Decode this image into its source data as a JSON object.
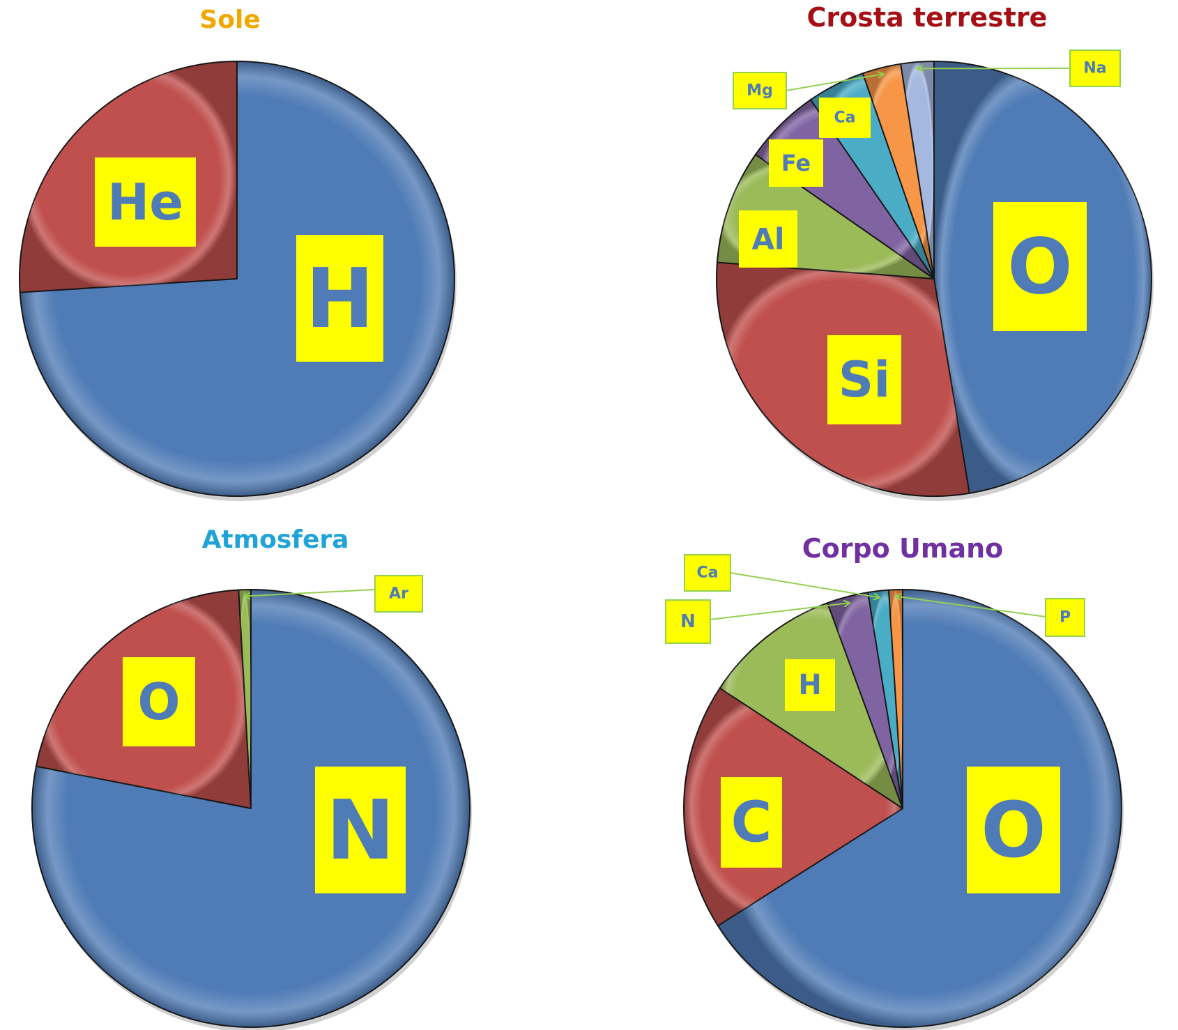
{
  "colors": {
    "blue": "#4f7bb6",
    "red": "#c0504d",
    "green": "#9bbb59",
    "purple": "#8064a2",
    "teal": "#4bacc6",
    "orange": "#f79646",
    "lavender": "#a5b8e0",
    "label_bg": "#ffff00",
    "label_text": "#4f7bb6",
    "leader": "#92d050",
    "slice_edge": "#1a1a1a"
  },
  "chart_data": [
    {
      "type": "pie",
      "title": "Sole",
      "title_color": "#f0a800",
      "start_angle_deg": 0,
      "slices": [
        {
          "label": "H",
          "value": 74,
          "color": "#4f7bb6",
          "label_style": "inside"
        },
        {
          "label": "He",
          "value": 26,
          "color": "#c0504d",
          "label_style": "inside"
        }
      ]
    },
    {
      "type": "pie",
      "title": "Crosta terrestre",
      "title_color": "#a50f15",
      "start_angle_deg": 0,
      "slices": [
        {
          "label": "O",
          "value": 46.4,
          "color": "#4f7bb6",
          "label_style": "inside"
        },
        {
          "label": "Si",
          "value": 28.2,
          "color": "#c0504d",
          "label_style": "inside"
        },
        {
          "label": "Al",
          "value": 8.3,
          "color": "#9bbb59",
          "label_style": "inside"
        },
        {
          "label": "Fe",
          "value": 5.6,
          "color": "#8064a2",
          "label_style": "inside"
        },
        {
          "label": "Ca",
          "value": 4.2,
          "color": "#4bacc6",
          "label_style": "inside"
        },
        {
          "label": "Mg",
          "value": 2.8,
          "color": "#f79646",
          "label_style": "callout"
        },
        {
          "label": "Na",
          "value": 2.4,
          "color": "#a5b8e0",
          "label_style": "callout"
        }
      ]
    },
    {
      "type": "pie",
      "title": "Atmosfera",
      "title_color": "#1fa3d8",
      "start_angle_deg": 0,
      "slices": [
        {
          "label": "N",
          "value": 78,
          "color": "#4f7bb6",
          "label_style": "inside"
        },
        {
          "label": "O",
          "value": 21,
          "color": "#c0504d",
          "label_style": "inside"
        },
        {
          "label": "Ar",
          "value": 0.9,
          "color": "#9bbb59",
          "label_style": "callout"
        }
      ]
    },
    {
      "type": "pie",
      "title": "Corpo Umano",
      "title_color": "#7030a0",
      "start_angle_deg": 0,
      "slices": [
        {
          "label": "O",
          "value": 65,
          "color": "#4f7bb6",
          "label_style": "inside"
        },
        {
          "label": "C",
          "value": 18,
          "color": "#c0504d",
          "label_style": "inside"
        },
        {
          "label": "H",
          "value": 10,
          "color": "#9bbb59",
          "label_style": "inside"
        },
        {
          "label": "N",
          "value": 3,
          "color": "#8064a2",
          "label_style": "callout"
        },
        {
          "label": "Ca",
          "value": 1.5,
          "color": "#4bacc6",
          "label_style": "callout"
        },
        {
          "label": "P",
          "value": 1,
          "color": "#f79646",
          "label_style": "callout"
        }
      ]
    }
  ]
}
